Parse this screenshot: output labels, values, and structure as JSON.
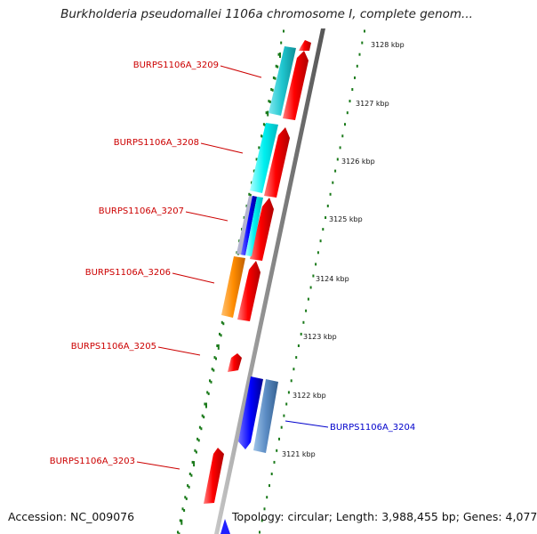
{
  "title": "Burkholderia pseudomallei 1106a chromosome I, complete genom...",
  "footer": {
    "accession_label": "Accession: NC_009076",
    "topology_label": "Topology: circular; Length: 3,988,455 bp; Genes: 4,077"
  },
  "scale_ticks": [
    "3128 kbp",
    "3127 kbp",
    "3126 kbp",
    "3125 kbp",
    "3124 kbp",
    "3123 kbp",
    "3122 kbp",
    "3121 kbp"
  ],
  "gene_labels": [
    {
      "text": "BURPS1106A_3209",
      "color": "#cc0000"
    },
    {
      "text": "BURPS1106A_3208",
      "color": "#cc0000"
    },
    {
      "text": "BURPS1106A_3207",
      "color": "#cc0000"
    },
    {
      "text": "BURPS1106A_3206",
      "color": "#cc0000"
    },
    {
      "text": "BURPS1106A_3205",
      "color": "#cc0000"
    },
    {
      "text": "BURPS1106A_3204",
      "color": "#0000cc"
    },
    {
      "text": "BURPS1106A_3203",
      "color": "#cc0000"
    }
  ],
  "colors": {
    "forward_gene": "#ff0000",
    "reverse_gene_cyan": "#1fb8c0",
    "reverse_gene_aqua": "#00eeee",
    "reverse_gene_orange": "#ff8800",
    "reverse_gene_blue": "#0000ee",
    "reverse_gene_steel": "#5f8fc0",
    "backbone": "#888888",
    "dots": "#1a7a1a"
  }
}
